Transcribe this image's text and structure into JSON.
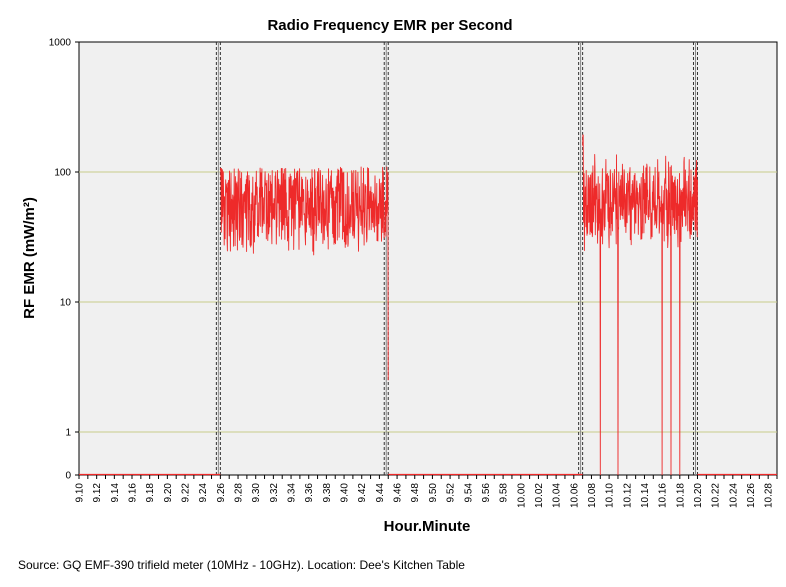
{
  "chart_data": {
    "type": "line",
    "title": "Radio Frequency EMR per Second",
    "xlabel": "Hour.Minute",
    "ylabel": "RF EMR (mW/m²)",
    "source": "Source: GQ EMF-390 trifield meter (10MHz - 10GHz). Location: Dee's Kitchen Table",
    "y_scale": "log-with-zero",
    "y_ticks": [
      0,
      1,
      10,
      100,
      1000
    ],
    "y_tick_labels": [
      "0",
      "1",
      "10",
      "100",
      "1000"
    ],
    "gridlines_at": [
      1,
      10,
      100
    ],
    "gridline_color": "#c8cc8a",
    "plot_background": "#f0f0f0",
    "series_color": "#ee2a2a",
    "x_range": [
      "9.10",
      "10.29"
    ],
    "x_tick_labels": [
      "9.10",
      "9.12",
      "9.14",
      "9.16",
      "9.18",
      "9.20",
      "9.22",
      "9.24",
      "9.26",
      "9.28",
      "9.30",
      "9.32",
      "9.34",
      "9.36",
      "9.38",
      "9.40",
      "9.42",
      "9.44",
      "9.46",
      "9.48",
      "9.50",
      "9.52",
      "9.54",
      "9.56",
      "9.58",
      "10.00",
      "10.02",
      "10.04",
      "10.06",
      "10.08",
      "10.10",
      "10.12",
      "10.14",
      "10.16",
      "10.18",
      "10.20",
      "10.22",
      "10.24",
      "10.26",
      "10.28"
    ],
    "reference_lines_at": [
      "9.26",
      "9.45",
      "10.07",
      "10.20"
    ],
    "series": [
      {
        "segments": [
          {
            "from": "9.10",
            "to": "9.26",
            "value": 0
          },
          {
            "from": "9.26",
            "to": "9.45",
            "value_min": 20,
            "value_max": 110,
            "typical": 55,
            "peak": 110,
            "end_value": 2.5
          },
          {
            "from": "9.45",
            "to": "10.07",
            "value": 0
          },
          {
            "from": "10.07",
            "to": "10.20",
            "value_min": 0,
            "value_max": 200,
            "typical": 60,
            "peak": 200,
            "drops_to_zero": [
              "10.09",
              "10.11",
              "10.11",
              "10.16",
              "10.17",
              "10.17",
              "10.18"
            ]
          },
          {
            "from": "10.20",
            "to": "10.29",
            "value": 0
          }
        ]
      }
    ]
  }
}
